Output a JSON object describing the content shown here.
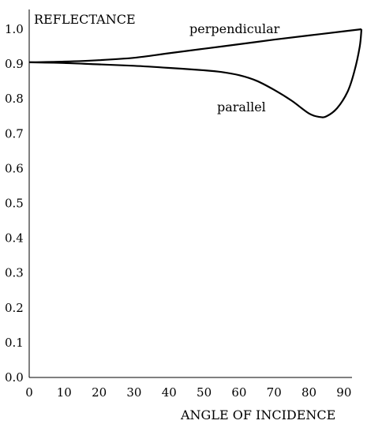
{
  "chart_data": {
    "type": "line",
    "title": "",
    "xlabel": "ANGLE OF INCIDENCE",
    "ylabel": "REFLECTANCE",
    "xlim": [
      0,
      95
    ],
    "ylim": [
      0,
      1.0
    ],
    "x_ticks": [
      "0",
      "10",
      "20",
      "30",
      "40",
      "50",
      "60",
      "70",
      "80",
      "90"
    ],
    "y_ticks": [
      "0.0",
      "0.1",
      "0.2",
      "0.3",
      "0.4",
      "0.5",
      "0.6",
      "0.7",
      "0.8",
      "0.9",
      "1.0"
    ],
    "grid": false,
    "legend": "none",
    "series": [
      {
        "name": "perpendicular",
        "color": "#000000",
        "x": [
          0,
          10,
          20,
          30,
          40,
          50,
          60,
          70,
          80,
          90,
          95
        ],
        "y": [
          0.905,
          0.907,
          0.911,
          0.918,
          0.931,
          0.944,
          0.957,
          0.97,
          0.982,
          0.994,
          1.0
        ]
      },
      {
        "name": "parallel",
        "color": "#000000",
        "x": [
          0,
          10,
          20,
          30,
          40,
          50,
          55,
          60,
          65,
          70,
          75,
          80,
          83,
          85,
          88,
          91,
          93,
          94.5,
          95
        ],
        "y": [
          0.905,
          0.903,
          0.899,
          0.895,
          0.889,
          0.882,
          0.877,
          0.868,
          0.852,
          0.826,
          0.795,
          0.758,
          0.748,
          0.75,
          0.773,
          0.82,
          0.88,
          0.95,
          1.0
        ]
      }
    ]
  }
}
